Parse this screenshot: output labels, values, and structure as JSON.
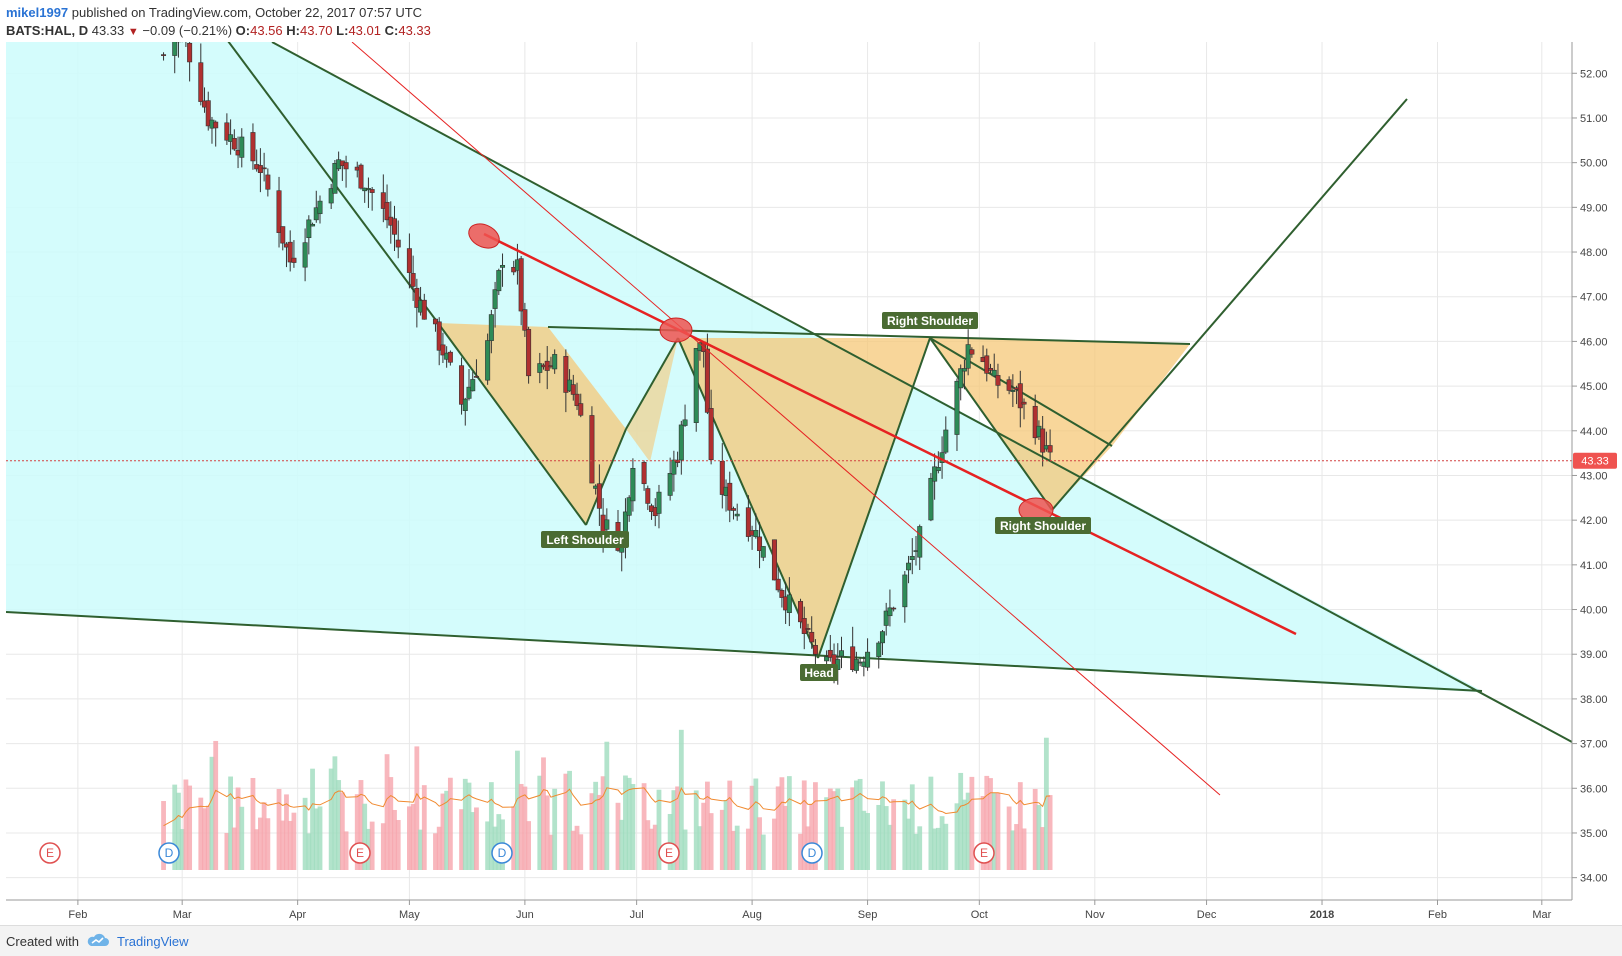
{
  "header": {
    "user": "mikel1997",
    "published": "published on TradingView.com, October 22, 2017 07:57 UTC",
    "symbol": "BATS:HAL, D",
    "last": "43.33",
    "change_arrow": "▼",
    "change": "−0.09 (−0.21%)",
    "o_label": "O:",
    "o_value": "43.56",
    "h_label": "H:",
    "h_value": "43.70",
    "l_label": "L:",
    "l_value": "43.01",
    "c_label": "C:",
    "c_value": "43.33"
  },
  "footer": {
    "created": "Created with",
    "brand": "TradingView",
    "logo_icon": "tradingview-cloud-icon"
  },
  "colors": {
    "up": "#2e8b57",
    "down": "#b03030",
    "pattern_fill": "#f5c878",
    "channel_fill": "#ccfcfc",
    "trend": "#2f5f2f",
    "neckline": "#e62222",
    "price_label": "#ef5350"
  },
  "chart_data": {
    "type": "candlestick",
    "symbol": "BATS:HAL",
    "interval": "D",
    "y_axis": {
      "ticks": [
        "34.00",
        "35.00",
        "36.00",
        "37.00",
        "38.00",
        "39.00",
        "40.00",
        "41.00",
        "42.00",
        "43.00",
        "44.00",
        "45.00",
        "46.00",
        "47.00",
        "48.00",
        "49.00",
        "50.00",
        "51.00",
        "52.00"
      ],
      "range": [
        33.5,
        52.7
      ],
      "position": "right"
    },
    "x_axis": {
      "ticks": [
        "Feb",
        "Mar",
        "Apr",
        "May",
        "Jun",
        "Jul",
        "Aug",
        "Sep",
        "Oct",
        "Nov",
        "Dec",
        "2018",
        "Feb",
        "Mar"
      ]
    },
    "last_price": "43.33",
    "grid": true,
    "pattern_labels": [
      "Left Shoulder",
      "Head",
      "Right Shoulder",
      "Right Shoulder"
    ],
    "events": [
      "E",
      "D",
      "E",
      "D",
      "E",
      "D",
      "E"
    ],
    "price_path": [
      [
        "2017-02-24",
        52.4
      ],
      [
        "2017-03-01",
        53.0
      ],
      [
        "2017-03-08",
        51.0
      ],
      [
        "2017-03-15",
        50.5
      ],
      [
        "2017-03-22",
        49.9
      ],
      [
        "2017-03-30",
        47.8
      ],
      [
        "2017-04-05",
        48.8
      ],
      [
        "2017-04-12",
        50.0
      ],
      [
        "2017-04-19",
        49.6
      ],
      [
        "2017-04-26",
        48.6
      ],
      [
        "2017-05-03",
        47.0
      ],
      [
        "2017-05-10",
        45.8
      ],
      [
        "2017-05-15",
        44.6
      ],
      [
        "2017-05-22",
        46.0
      ],
      [
        "2017-05-26",
        47.9
      ],
      [
        "2017-05-30",
        47.6
      ],
      [
        "2017-06-02",
        45.2
      ],
      [
        "2017-06-09",
        45.5
      ],
      [
        "2017-06-15",
        44.7
      ],
      [
        "2017-06-22",
        41.9
      ],
      [
        "2017-06-27",
        41.5
      ],
      [
        "2017-06-30",
        43.4
      ],
      [
        "2017-07-06",
        42.2
      ],
      [
        "2017-07-12",
        43.5
      ],
      [
        "2017-07-17",
        45.9
      ],
      [
        "2017-07-19",
        45.8
      ],
      [
        "2017-07-21",
        43.1
      ],
      [
        "2017-07-26",
        42.4
      ],
      [
        "2017-08-02",
        41.7
      ],
      [
        "2017-08-09",
        40.4
      ],
      [
        "2017-08-16",
        39.3
      ],
      [
        "2017-08-21",
        38.7
      ],
      [
        "2017-08-25",
        38.9
      ],
      [
        "2017-08-30",
        38.9
      ],
      [
        "2017-09-05",
        39.6
      ],
      [
        "2017-09-11",
        40.7
      ],
      [
        "2017-09-15",
        41.6
      ],
      [
        "2017-09-20",
        43.4
      ],
      [
        "2017-09-26",
        45.3
      ],
      [
        "2017-09-28",
        45.9
      ],
      [
        "2017-10-02",
        45.6
      ],
      [
        "2017-10-05",
        45.1
      ],
      [
        "2017-10-10",
        44.9
      ],
      [
        "2017-10-16",
        44.1
      ],
      [
        "2017-10-20",
        43.33
      ]
    ],
    "volume": {
      "has_moving_average": true
    }
  }
}
